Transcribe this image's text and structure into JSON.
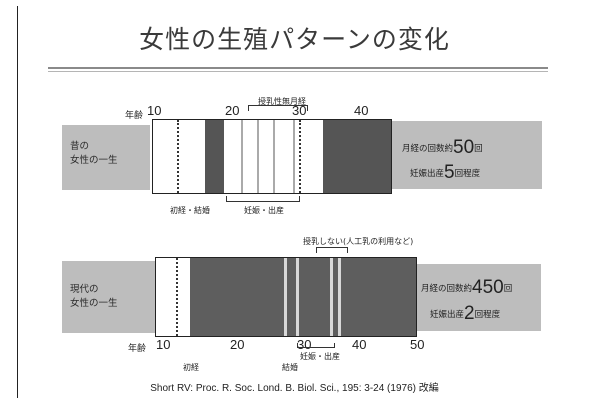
{
  "title": "女性の生殖パターンの変化",
  "past": {
    "axis_label": "年齢",
    "ticks": [
      "10",
      "20",
      "30",
      "40"
    ],
    "side_label_line1": "昔の",
    "side_label_line2": "女性の一生",
    "top_annotation": "授乳性無月経",
    "bottom_annotation_left": "初経・結婚",
    "bottom_annotation_right": "妊娠・出産",
    "stat1_prefix": "月経の回数約",
    "stat1_number": "50",
    "stat1_suffix": "回",
    "stat2_prefix": "妊娠出産",
    "stat2_number": "5",
    "stat2_suffix": "回程度"
  },
  "modern": {
    "axis_label": "年齢",
    "ticks": [
      "10",
      "20",
      "30",
      "40",
      "50"
    ],
    "side_label_line1": "現代の",
    "side_label_line2": "女性の一生",
    "top_annotation": "授乳しない(人工乳の利用など)",
    "bottom_annotation_menarche": "初経",
    "bottom_annotation_marriage": "結婚",
    "bottom_annotation_pregnancy": "妊娠・出産",
    "stat1_prefix": "月経の回数約",
    "stat1_number": "450",
    "stat1_suffix": "回",
    "stat2_prefix": "妊娠出産",
    "stat2_number": "2",
    "stat2_suffix": "回程度"
  },
  "citation": "Short RV: Proc. R. Soc. Lond. B. Biol. Sci., 195: 3-24 (1976) 改編",
  "colors": {
    "band": "#bdbdbd",
    "menstruation": "#555555",
    "pregnancy_light": "#f2f2f2"
  }
}
